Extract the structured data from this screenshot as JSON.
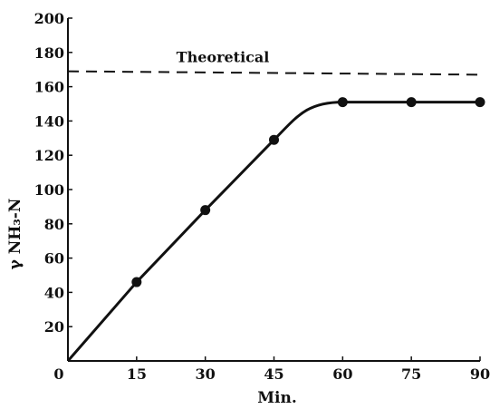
{
  "chart_data": {
    "type": "line",
    "title": "",
    "xlabel": "Min.",
    "ylabel": "γ NH₃-N",
    "xlim": [
      0,
      90
    ],
    "ylim": [
      0,
      200
    ],
    "x_ticks": [
      "0",
      "15",
      "30",
      "45",
      "60",
      "75",
      "90"
    ],
    "y_ticks": [
      "20",
      "40",
      "60",
      "80",
      "100",
      "120",
      "140",
      "160",
      "180",
      "200"
    ],
    "grid": false,
    "series": [
      {
        "x": [
          0,
          15,
          30,
          45,
          60,
          75,
          90
        ],
        "y": [
          0,
          46,
          88,
          129,
          151,
          151,
          151
        ],
        "style": "solid",
        "markers": "filled-circle",
        "marker_points": [
          1,
          2,
          3,
          4,
          5,
          6
        ]
      }
    ],
    "reference_lines": [
      {
        "label": "Theoretical",
        "x": [
          0,
          90
        ],
        "y": [
          169,
          167
        ],
        "style": "dashed"
      }
    ],
    "colors": {
      "ink": "#111111",
      "background": "#ffffff"
    }
  }
}
